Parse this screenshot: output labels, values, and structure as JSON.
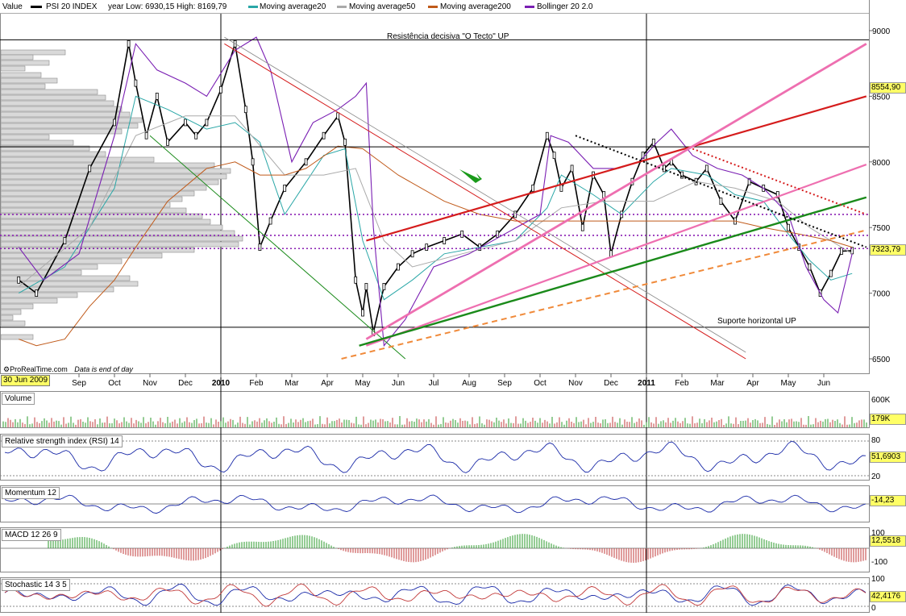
{
  "legend": {
    "value_label": "Value",
    "series_label": "PSI 20 INDEX",
    "yearlow_label": "year Low: 6930,15 High: 8169,79",
    "ma20_label": "Moving average20",
    "ma50_label": "Moving average50",
    "ma200_label": "Moving average200",
    "boll_label": "Bollinger 20 2.0"
  },
  "colors": {
    "price": "#000000",
    "ma20": "#2aa7a7",
    "ma50": "#aaaaaa",
    "ma200": "#c05a1a",
    "bollinger": "#7a1fb3",
    "pink": "#ee6fb0",
    "red": "#d51c1c",
    "green": "#1a8a1a",
    "orange": "#f08a3a",
    "purple_dotted": "#8a1fb3",
    "volume_up": "#2a9a2a",
    "volume_down": "#c23a3a",
    "indicator_line": "#1a2aa8",
    "tag_bg": "#ffff66"
  },
  "annotations": {
    "resistance": "Resistência decisiva \"O Tecto\" UP",
    "support": "Suporte horizontal UP"
  },
  "footer": {
    "brand": "ProRealTime.com",
    "note": "Data is end of day",
    "start_date": "30 Jun 2009"
  },
  "price_tags": {
    "high_tag": "8554,90",
    "last_tag": "7323,79"
  },
  "chart_data": [
    {
      "type": "line",
      "name": "price",
      "yticks": [
        "9000",
        "8500",
        "8000",
        "7500",
        "7000",
        "6500"
      ],
      "ylim": [
        6500,
        9000
      ],
      "x_tick_labels": [
        "Sep",
        "Oct",
        "Nov",
        "Dec",
        "2010",
        "Feb",
        "Mar",
        "Apr",
        "May",
        "Jun",
        "Jul",
        "Aug",
        "Sep",
        "Oct",
        "Nov",
        "Dec",
        "2011",
        "Feb",
        "Mar",
        "Apr",
        "May",
        "Jun"
      ],
      "x_tick_month_index": [
        2,
        3,
        4,
        5,
        6,
        7,
        8,
        9,
        10,
        11,
        12,
        13,
        14,
        15,
        16,
        17,
        18,
        19,
        20,
        21,
        22,
        23
      ],
      "series": [
        {
          "name": "PSI 20 INDEX",
          "x": [
            0.3,
            0.8,
            1.6,
            2.3,
            3.0,
            3.4,
            3.6,
            3.9,
            4.2,
            4.5,
            5.0,
            5.3,
            5.6,
            6.0,
            6.4,
            6.7,
            6.9,
            7.1,
            7.4,
            7.8,
            8.4,
            8.9,
            9.3,
            9.5,
            9.8,
            10.0,
            10.1,
            10.3,
            10.6,
            11.0,
            11.4,
            11.8,
            12.3,
            12.8,
            13.3,
            13.8,
            14.3,
            14.8,
            15.2,
            15.4,
            15.6,
            15.9,
            16.2,
            16.5,
            16.8,
            17.0,
            17.3,
            17.6,
            17.9,
            18.2,
            18.5,
            18.7,
            19.0,
            19.4,
            19.7,
            20.1,
            20.5,
            20.9,
            21.3,
            21.7,
            22.0,
            22.3,
            22.6,
            22.9,
            23.2,
            23.5,
            23.8
          ],
          "y": [
            7100,
            7000,
            7400,
            7950,
            8300,
            8900,
            8600,
            8200,
            8500,
            8150,
            8300,
            8200,
            8300,
            8550,
            8900,
            8400,
            8000,
            7350,
            7550,
            7800,
            8000,
            8200,
            8350,
            8150,
            7100,
            6850,
            7050,
            6700,
            7050,
            7200,
            7300,
            7350,
            7400,
            7450,
            7350,
            7450,
            7600,
            7800,
            8200,
            8050,
            7800,
            7950,
            7500,
            7900,
            7750,
            7300,
            7600,
            7850,
            8050,
            8150,
            7950,
            8000,
            7900,
            7850,
            7950,
            7700,
            7550,
            7850,
            7800,
            7750,
            7500,
            7350,
            7200,
            7000,
            7150,
            7320,
            7324
          ]
        },
        {
          "name": "Moving average20",
          "x": [
            0.3,
            1.6,
            3.0,
            3.6,
            4.5,
            5.6,
            6.4,
            7.1,
            7.8,
            8.9,
            9.5,
            10.0,
            10.6,
            11.4,
            12.3,
            13.3,
            14.3,
            15.2,
            15.6,
            16.5,
            17.3,
            18.2,
            18.7,
            19.7,
            20.5,
            21.3,
            22.0,
            22.6,
            23.2,
            23.8
          ],
          "y": [
            7000,
            7200,
            7800,
            8500,
            8400,
            8250,
            8300,
            8150,
            7600,
            8050,
            8100,
            7400,
            6950,
            7100,
            7300,
            7350,
            7400,
            7650,
            7900,
            7750,
            7600,
            7850,
            7950,
            7900,
            7750,
            7700,
            7450,
            7250,
            7100,
            7150
          ]
        },
        {
          "name": "Moving average50",
          "x": [
            0.3,
            2.3,
            3.6,
            5.0,
            6.4,
            7.8,
            8.9,
            9.8,
            10.6,
            11.4,
            12.8,
            14.3,
            15.6,
            16.8,
            18.2,
            19.4,
            20.5,
            21.7,
            22.6,
            23.8
          ],
          "y": [
            7050,
            7500,
            8200,
            8350,
            8350,
            7900,
            7900,
            7950,
            7400,
            7200,
            7300,
            7400,
            7650,
            7700,
            7700,
            7850,
            7800,
            7700,
            7500,
            7300
          ]
        },
        {
          "name": "Moving average200",
          "x": [
            0.3,
            0.8,
            1.6,
            2.3,
            3.0,
            3.6,
            4.5,
            5.6,
            6.4,
            7.1,
            7.8,
            8.4,
            9.3,
            10.0,
            11.0,
            12.3,
            13.3,
            14.3,
            15.2,
            16.2,
            17.3,
            18.5,
            19.4,
            20.5,
            21.3,
            22.3,
            23.2,
            23.8
          ],
          "y": [
            6650,
            6600,
            6650,
            6900,
            7100,
            7350,
            7700,
            7950,
            8000,
            7900,
            7900,
            7950,
            8120,
            8100,
            7900,
            7700,
            7600,
            7550,
            7550,
            7550,
            7550,
            7550,
            7550,
            7550,
            7500,
            7450,
            7400,
            7350
          ]
        },
        {
          "name": "Bollinger 20 2.0",
          "x": [
            0.3,
            1.0,
            2.0,
            3.0,
            3.6,
            4.2,
            5.0,
            5.6,
            6.4,
            7.0,
            7.4,
            8.0,
            8.6,
            9.3,
            9.8,
            10.1,
            10.3,
            10.6,
            11.2,
            12.0,
            13.0,
            14.0,
            15.0,
            15.3,
            15.8,
            16.5,
            17.2,
            17.8,
            18.3,
            18.7,
            19.3,
            20.0,
            20.7,
            21.3,
            22.0,
            22.5,
            23.0,
            23.4,
            23.8
          ],
          "y": [
            7350,
            7100,
            7300,
            8200,
            8900,
            8700,
            8600,
            8500,
            8850,
            8950,
            8700,
            8000,
            8300,
            8400,
            8500,
            8600,
            7500,
            6600,
            6800,
            7200,
            7300,
            7450,
            7600,
            8200,
            8150,
            7950,
            7950,
            8000,
            8150,
            8250,
            8050,
            7950,
            7900,
            7800,
            7600,
            7200,
            6950,
            6850,
            7300
          ]
        }
      ],
      "horizontal_levels": [
        {
          "y": 8930,
          "style": "solid black"
        },
        {
          "y": 8115,
          "style": "solid black"
        },
        {
          "y": 7600,
          "style": "dotted purple"
        },
        {
          "y": 7440,
          "style": "dotted purple"
        },
        {
          "y": 7340,
          "style": "dotted purple"
        },
        {
          "y": 6740,
          "style": "solid black"
        }
      ]
    },
    {
      "type": "bar",
      "name": "Volume",
      "yticks": [
        "600K"
      ],
      "last_value": "179K"
    },
    {
      "type": "line",
      "name": "Relative strength index (RSI) 14",
      "yticks": [
        "80",
        "20"
      ],
      "last_value": "51,6903"
    },
    {
      "type": "line",
      "name": "Momentum 12",
      "last_value": "-14,23"
    },
    {
      "type": "bar",
      "name": "MACD 12 26 9",
      "yticks": [
        "100",
        "-100"
      ],
      "last_value": "12,5518"
    },
    {
      "type": "line",
      "name": "Stochastic 14 3 5",
      "yticks": [
        "100",
        "0"
      ],
      "last_value": "42,4176"
    }
  ]
}
